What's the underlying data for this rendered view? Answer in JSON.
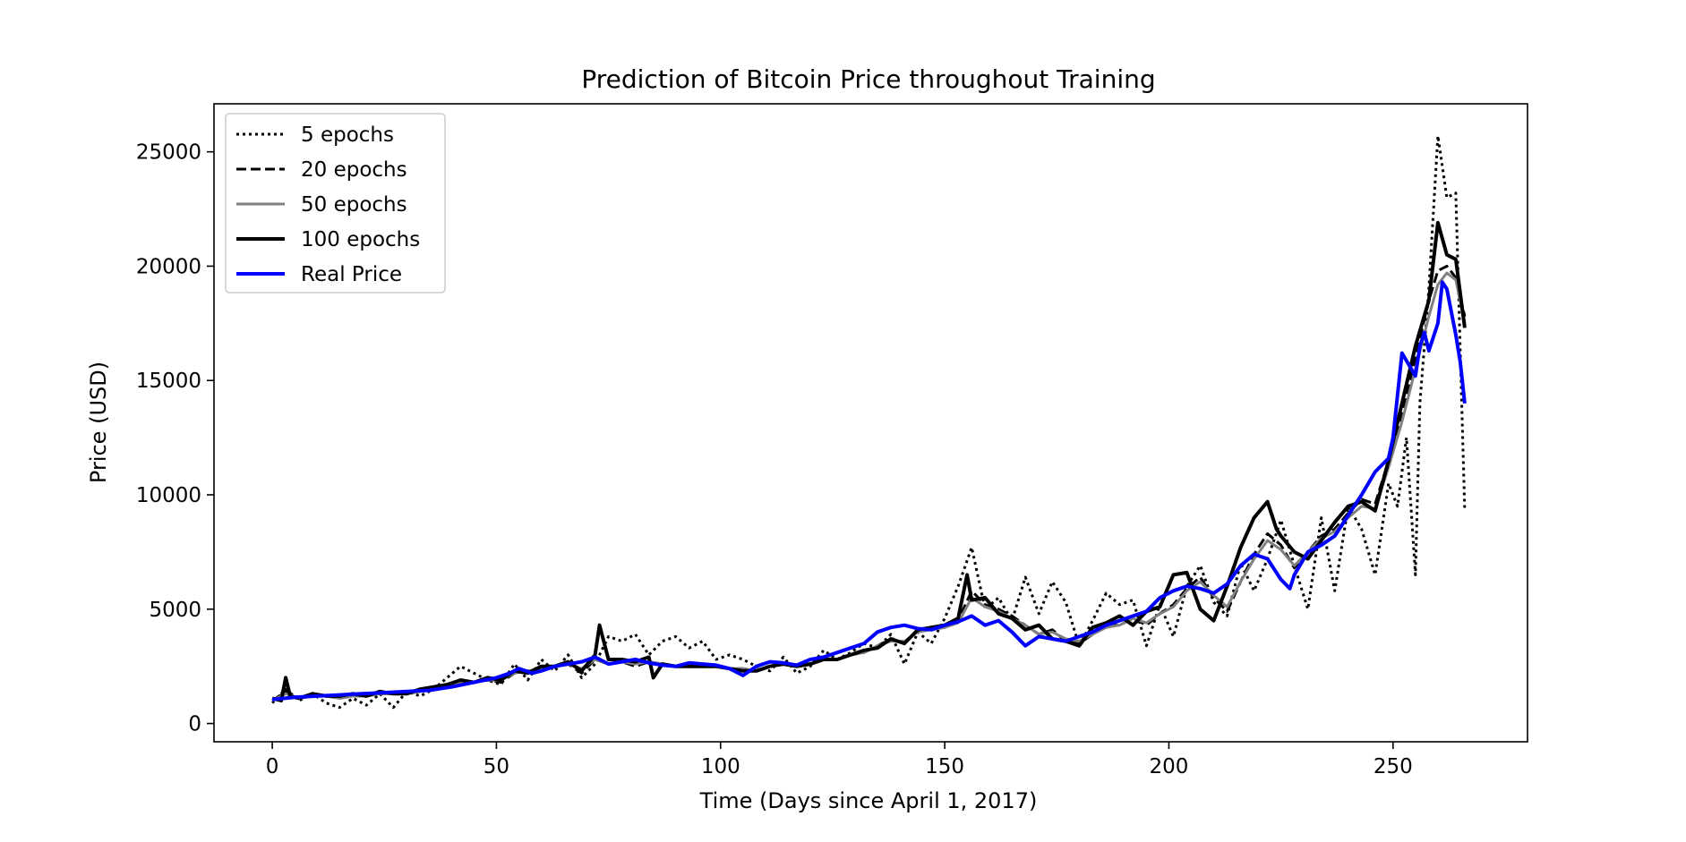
{
  "chart_data": {
    "type": "line",
    "title": "Prediction of Bitcoin Price throughout Training",
    "xlabel": "Time (Days since April 1, 2017)",
    "ylabel": "Price (USD)",
    "xlim": [
      -13,
      280
    ],
    "ylim": [
      -800,
      27100
    ],
    "xticks": [
      0,
      50,
      100,
      150,
      200,
      250
    ],
    "yticks": [
      0,
      5000,
      10000,
      15000,
      20000,
      25000
    ],
    "grid": false,
    "legend_position": "top-left",
    "series": [
      {
        "name": "5 epochs",
        "color": "#000000",
        "style": "dotted",
        "x": [
          0,
          3,
          6,
          9,
          12,
          15,
          18,
          21,
          24,
          27,
          30,
          33,
          36,
          39,
          42,
          45,
          48,
          51,
          54,
          57,
          60,
          63,
          66,
          69,
          72,
          75,
          78,
          81,
          84,
          87,
          90,
          93,
          96,
          99,
          102,
          105,
          108,
          111,
          114,
          117,
          120,
          123,
          126,
          129,
          132,
          135,
          138,
          141,
          144,
          147,
          150,
          153,
          156,
          159,
          162,
          165,
          168,
          171,
          174,
          177,
          180,
          183,
          186,
          189,
          192,
          195,
          198,
          201,
          204,
          207,
          210,
          213,
          216,
          219,
          222,
          225,
          228,
          231,
          234,
          237,
          240,
          243,
          246,
          249,
          251,
          253,
          255,
          256,
          258,
          260,
          262,
          264,
          266
        ],
        "values": [
          900,
          1500,
          1000,
          1300,
          900,
          700,
          1100,
          800,
          1300,
          700,
          1400,
          1200,
          1500,
          2000,
          2500,
          2200,
          1900,
          1700,
          2600,
          1900,
          2800,
          2300,
          3000,
          2000,
          2600,
          3800,
          3600,
          3900,
          3000,
          3600,
          3800,
          3300,
          3600,
          2800,
          3000,
          2800,
          2500,
          2300,
          2900,
          2200,
          2500,
          3200,
          2800,
          3100,
          3500,
          3300,
          3900,
          2600,
          4000,
          3500,
          4600,
          6000,
          7700,
          5000,
          5500,
          4500,
          6400,
          4800,
          6200,
          5300,
          3400,
          4500,
          5700,
          5200,
          5400,
          3400,
          5200,
          3800,
          6000,
          6900,
          5300,
          4700,
          7000,
          5800,
          7200,
          8900,
          6900,
          5000,
          9000,
          5800,
          9500,
          8500,
          6500,
          10500,
          9500,
          12500,
          6500,
          14000,
          19000,
          25700,
          23000,
          23200,
          9300
        ]
      },
      {
        "name": "20 epochs",
        "color": "#000000",
        "style": "dashed",
        "x": [
          0,
          3,
          6,
          9,
          12,
          15,
          18,
          21,
          24,
          27,
          30,
          33,
          36,
          39,
          42,
          45,
          48,
          51,
          54,
          57,
          60,
          63,
          66,
          69,
          72,
          75,
          78,
          81,
          84,
          87,
          90,
          93,
          96,
          99,
          102,
          105,
          108,
          111,
          114,
          117,
          120,
          123,
          126,
          129,
          132,
          135,
          138,
          141,
          144,
          147,
          150,
          153,
          156,
          159,
          162,
          165,
          168,
          171,
          174,
          177,
          180,
          183,
          186,
          189,
          192,
          195,
          198,
          201,
          204,
          207,
          210,
          213,
          216,
          219,
          222,
          225,
          228,
          231,
          234,
          237,
          240,
          243,
          246,
          249,
          252,
          255,
          258,
          260,
          262,
          264,
          266
        ],
        "values": [
          1000,
          1400,
          1100,
          1200,
          1200,
          1100,
          1200,
          1200,
          1300,
          1300,
          1300,
          1400,
          1500,
          1700,
          1800,
          1800,
          1900,
          1800,
          2200,
          2300,
          2400,
          2500,
          2600,
          2200,
          2800,
          2600,
          2700,
          2500,
          2700,
          2600,
          2500,
          2500,
          2500,
          2500,
          2400,
          2400,
          2300,
          2500,
          2600,
          2500,
          2600,
          2800,
          2800,
          3000,
          3100,
          3400,
          3700,
          3500,
          4100,
          4100,
          4200,
          4500,
          5800,
          5200,
          5000,
          4700,
          4300,
          3900,
          4100,
          3600,
          3500,
          3900,
          4300,
          4300,
          4600,
          4300,
          4800,
          5200,
          5900,
          6400,
          5500,
          4900,
          6200,
          7400,
          8300,
          7800,
          6800,
          7500,
          8200,
          8500,
          9200,
          9800,
          9600,
          11500,
          13500,
          16000,
          18500,
          19800,
          20000,
          19500,
          17800
        ]
      },
      {
        "name": "50 epochs",
        "color": "#808080",
        "style": "solid",
        "x": [
          0,
          3,
          6,
          9,
          12,
          15,
          18,
          21,
          24,
          27,
          30,
          33,
          36,
          39,
          42,
          45,
          48,
          51,
          54,
          57,
          60,
          63,
          66,
          69,
          72,
          75,
          78,
          81,
          84,
          87,
          90,
          93,
          96,
          99,
          102,
          105,
          108,
          111,
          114,
          117,
          120,
          123,
          126,
          129,
          132,
          135,
          138,
          141,
          144,
          147,
          150,
          153,
          156,
          159,
          162,
          165,
          168,
          171,
          174,
          177,
          180,
          183,
          186,
          189,
          192,
          195,
          198,
          201,
          204,
          207,
          210,
          213,
          216,
          219,
          222,
          225,
          228,
          231,
          234,
          237,
          240,
          243,
          246,
          249,
          252,
          255,
          258,
          260,
          262,
          264,
          266
        ],
        "values": [
          1000,
          1300,
          1100,
          1200,
          1200,
          1100,
          1200,
          1200,
          1300,
          1300,
          1300,
          1400,
          1500,
          1700,
          1800,
          1800,
          1900,
          1900,
          2200,
          2300,
          2400,
          2500,
          2600,
          2400,
          2800,
          2600,
          2700,
          2600,
          2700,
          2600,
          2500,
          2500,
          2500,
          2500,
          2400,
          2400,
          2300,
          2500,
          2600,
          2500,
          2600,
          2800,
          2800,
          3000,
          3100,
          3400,
          3600,
          3600,
          4000,
          4100,
          4200,
          4400,
          5500,
          5100,
          4900,
          4600,
          4300,
          3900,
          4000,
          3700,
          3600,
          3900,
          4200,
          4300,
          4600,
          4400,
          4800,
          5100,
          5800,
          6200,
          5600,
          5100,
          6200,
          7200,
          8000,
          7600,
          6900,
          7500,
          8100,
          8400,
          9000,
          9500,
          9400,
          11200,
          13200,
          15500,
          17800,
          19200,
          19700,
          19400,
          17500
        ]
      },
      {
        "name": "100 epochs",
        "color": "#000000",
        "style": "solid-thick",
        "x": [
          0,
          2,
          3,
          4,
          6,
          9,
          12,
          15,
          18,
          21,
          24,
          27,
          30,
          33,
          36,
          39,
          42,
          45,
          48,
          51,
          54,
          57,
          60,
          63,
          66,
          69,
          72,
          73,
          75,
          78,
          81,
          84,
          85,
          87,
          90,
          93,
          96,
          99,
          102,
          105,
          108,
          111,
          114,
          117,
          120,
          123,
          126,
          129,
          132,
          135,
          138,
          141,
          144,
          147,
          150,
          153,
          155,
          156,
          159,
          162,
          165,
          168,
          171,
          174,
          177,
          180,
          183,
          186,
          189,
          192,
          195,
          198,
          201,
          204,
          207,
          210,
          213,
          216,
          219,
          222,
          224,
          225,
          228,
          231,
          234,
          237,
          240,
          243,
          246,
          249,
          252,
          255,
          258,
          260,
          262,
          264,
          266
        ],
        "values": [
          1100,
          1000,
          2000,
          1200,
          1100,
          1300,
          1200,
          1200,
          1300,
          1200,
          1400,
          1300,
          1300,
          1500,
          1600,
          1700,
          1900,
          1800,
          2000,
          1900,
          2300,
          2200,
          2500,
          2500,
          2700,
          2300,
          3000,
          4300,
          2800,
          2800,
          2700,
          2900,
          2000,
          2600,
          2500,
          2500,
          2500,
          2500,
          2400,
          2300,
          2300,
          2500,
          2600,
          2500,
          2600,
          2800,
          2800,
          3000,
          3200,
          3300,
          3700,
          3500,
          4100,
          4200,
          4300,
          4600,
          6500,
          5400,
          5500,
          4800,
          4600,
          4100,
          4300,
          3700,
          3600,
          3400,
          4200,
          4400,
          4700,
          4300,
          4900,
          5100,
          6500,
          6600,
          5000,
          4500,
          6000,
          7700,
          9000,
          9700,
          8500,
          8200,
          7500,
          7200,
          8000,
          8800,
          9500,
          9700,
          9300,
          11500,
          14000,
          16500,
          18500,
          21900,
          20500,
          20300,
          17300
        ]
      },
      {
        "name": "Real Price",
        "color": "#0000ff",
        "style": "solid-thick",
        "x": [
          0,
          5,
          10,
          15,
          20,
          25,
          30,
          35,
          40,
          45,
          50,
          53,
          55,
          58,
          60,
          63,
          66,
          69,
          72,
          75,
          78,
          81,
          84,
          87,
          90,
          93,
          96,
          99,
          102,
          105,
          108,
          111,
          114,
          117,
          120,
          123,
          126,
          129,
          132,
          135,
          138,
          141,
          144,
          147,
          150,
          153,
          156,
          159,
          162,
          165,
          168,
          171,
          174,
          177,
          180,
          183,
          186,
          189,
          192,
          195,
          198,
          201,
          204,
          207,
          210,
          213,
          216,
          219,
          222,
          225,
          227,
          228,
          231,
          234,
          237,
          240,
          243,
          246,
          249,
          250,
          252,
          255,
          256,
          257,
          258,
          260,
          261,
          262,
          264,
          265,
          266
        ],
        "values": [
          1050,
          1150,
          1200,
          1250,
          1300,
          1350,
          1400,
          1450,
          1600,
          1800,
          2000,
          2200,
          2400,
          2200,
          2300,
          2500,
          2600,
          2700,
          2900,
          2600,
          2700,
          2800,
          2650,
          2550,
          2500,
          2650,
          2600,
          2550,
          2400,
          2100,
          2500,
          2700,
          2650,
          2550,
          2800,
          2900,
          3100,
          3300,
          3500,
          4000,
          4200,
          4300,
          4150,
          4100,
          4300,
          4450,
          4700,
          4300,
          4500,
          4000,
          3400,
          3800,
          3700,
          3600,
          3800,
          4000,
          4300,
          4500,
          4700,
          4900,
          5500,
          5800,
          6000,
          5900,
          5700,
          6100,
          6900,
          7400,
          7200,
          6300,
          5900,
          6500,
          7500,
          7800,
          8200,
          9100,
          10000,
          11000,
          11600,
          12500,
          16200,
          15200,
          16500,
          17100,
          16300,
          17500,
          19300,
          19000,
          17000,
          15800,
          14000
        ]
      }
    ]
  }
}
